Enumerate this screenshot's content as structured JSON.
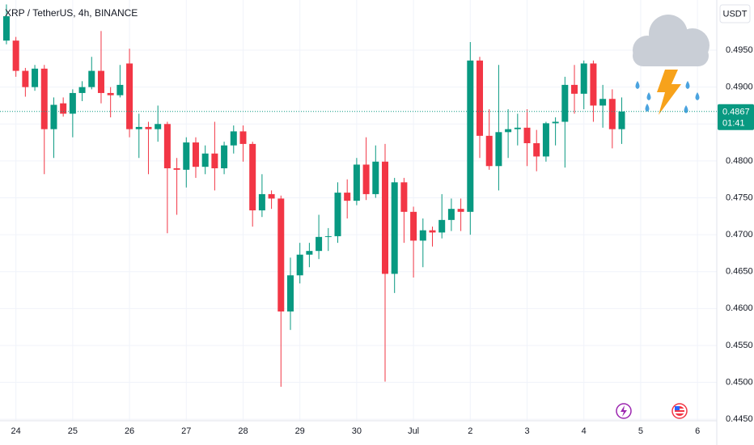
{
  "chart_data": {
    "type": "candlestick",
    "title": "XRP / TetherUS, 4h, BINANCE",
    "currency": "USDT",
    "up_color": "#089981",
    "down_color": "#f23645",
    "open": [
      0.4963,
      0.4963,
      0.4922,
      0.49,
      0.4925,
      0.4843,
      0.4878,
      0.4864,
      0.4892,
      0.49,
      0.4922,
      0.4892,
      0.4889,
      0.4932,
      0.4843,
      0.4846,
      0.4843,
      0.485,
      0.479,
      0.4788,
      0.4825,
      0.4792,
      0.481,
      0.479,
      0.4821,
      0.484,
      0.4823,
      0.4733,
      0.4755,
      0.4749,
      0.4596,
      0.4645,
      0.4673,
      0.4678,
      0.4697,
      0.4698,
      0.4757,
      0.4746,
      0.4795,
      0.4755,
      0.4799,
      0.4647,
      0.4771,
      0.4731,
      0.4692,
      0.4706,
      0.4703,
      0.472,
      0.4735,
      0.4731,
      0.4936,
      0.4834,
      0.4793,
      0.4839,
      0.4843,
      0.4845,
      0.4824,
      0.4806,
      0.4851,
      0.4853,
      0.4903,
      0.4891,
      0.4932,
      0.4875,
      0.4884,
      0.4843
    ],
    "high": [
      0.5012,
      0.4968,
      0.4926,
      0.493,
      0.493,
      0.4886,
      0.4886,
      0.4897,
      0.4908,
      0.4941,
      0.4976,
      0.49,
      0.493,
      0.4952,
      0.4864,
      0.4853,
      0.4875,
      0.4853,
      0.4804,
      0.4832,
      0.4832,
      0.4821,
      0.4853,
      0.4826,
      0.4848,
      0.4848,
      0.4826,
      0.4782,
      0.476,
      0.4753,
      0.4669,
      0.4689,
      0.4689,
      0.4727,
      0.4709,
      0.4771,
      0.4775,
      0.4804,
      0.4832,
      0.4821,
      0.4823,
      0.4777,
      0.4777,
      0.4738,
      0.4722,
      0.4711,
      0.4755,
      0.4749,
      0.4749,
      0.4961,
      0.4941,
      0.487,
      0.493,
      0.487,
      0.4864,
      0.487,
      0.4842,
      0.4853,
      0.4859,
      0.4914,
      0.493,
      0.4936,
      0.4936,
      0.4903,
      0.4897,
      0.4886
    ],
    "low": [
      0.4958,
      0.4914,
      0.4887,
      0.4895,
      0.4782,
      0.4804,
      0.486,
      0.4832,
      0.4881,
      0.4897,
      0.4878,
      0.4859,
      0.4886,
      0.4832,
      0.4804,
      0.4782,
      0.4826,
      0.4702,
      0.4727,
      0.4764,
      0.4777,
      0.4782,
      0.476,
      0.4782,
      0.481,
      0.4799,
      0.4711,
      0.4724,
      0.4735,
      0.4494,
      0.4571,
      0.4634,
      0.4656,
      0.4667,
      0.4678,
      0.4689,
      0.4722,
      0.474,
      0.4747,
      0.475,
      0.4501,
      0.4621,
      0.4689,
      0.4642,
      0.4656,
      0.4684,
      0.4695,
      0.4705,
      0.4705,
      0.47,
      0.4804,
      0.4788,
      0.476,
      0.4804,
      0.4821,
      0.4793,
      0.4786,
      0.4799,
      0.4821,
      0.4791,
      0.4864,
      0.487,
      0.4853,
      0.4845,
      0.4817,
      0.4823
    ],
    "close": [
      0.4996,
      0.4922,
      0.49,
      0.4925,
      0.4843,
      0.4876,
      0.4864,
      0.4892,
      0.49,
      0.4922,
      0.4892,
      0.4889,
      0.4903,
      0.4843,
      0.4846,
      0.4843,
      0.485,
      0.479,
      0.4788,
      0.4825,
      0.4792,
      0.481,
      0.479,
      0.4821,
      0.484,
      0.4823,
      0.4733,
      0.4755,
      0.4749,
      0.4596,
      0.4645,
      0.4673,
      0.4678,
      0.4697,
      0.4698,
      0.4757,
      0.4746,
      0.4795,
      0.4755,
      0.4799,
      0.4647,
      0.4771,
      0.4731,
      0.4692,
      0.4706,
      0.4703,
      0.472,
      0.4735,
      0.4731,
      0.4936,
      0.4834,
      0.4793,
      0.4839,
      0.4843,
      0.4845,
      0.4824,
      0.4806,
      0.4851,
      0.4853,
      0.4903,
      0.4891,
      0.4932,
      0.4875,
      0.4884,
      0.4843,
      0.4867
    ],
    "xlim": [
      -0.68,
      75.04
    ],
    "xticks": [
      {
        "value": 1,
        "label": "24"
      },
      {
        "value": 7,
        "label": "25"
      },
      {
        "value": 13,
        "label": "26"
      },
      {
        "value": 19,
        "label": "27"
      },
      {
        "value": 25,
        "label": "28"
      },
      {
        "value": 31,
        "label": "29"
      },
      {
        "value": 37,
        "label": "30"
      },
      {
        "value": 43,
        "label": "Jul"
      },
      {
        "value": 49,
        "label": "2"
      },
      {
        "value": 55,
        "label": "3"
      },
      {
        "value": 61,
        "label": "4"
      },
      {
        "value": 67,
        "label": "5"
      },
      {
        "value": 73,
        "label": "6"
      }
    ],
    "ylim": [
      0.4448,
      0.5018
    ],
    "yticks": [
      {
        "value": 0.495,
        "label": "0.4950"
      },
      {
        "value": 0.49,
        "label": "0.4900"
      },
      {
        "value": 0.485,
        "label": "0.4850"
      },
      {
        "value": 0.48,
        "label": "0.4800"
      },
      {
        "value": 0.475,
        "label": "0.4750"
      },
      {
        "value": 0.47,
        "label": "0.4700"
      },
      {
        "value": 0.465,
        "label": "0.4650"
      },
      {
        "value": 0.46,
        "label": "0.4600"
      },
      {
        "value": 0.455,
        "label": "0.4550"
      },
      {
        "value": 0.45,
        "label": "0.4500"
      },
      {
        "value": 0.445,
        "label": "0.4450"
      }
    ],
    "grid": true,
    "last_price": {
      "value": 0.4867,
      "label": "0.4867"
    },
    "countdown": "01:41"
  }
}
